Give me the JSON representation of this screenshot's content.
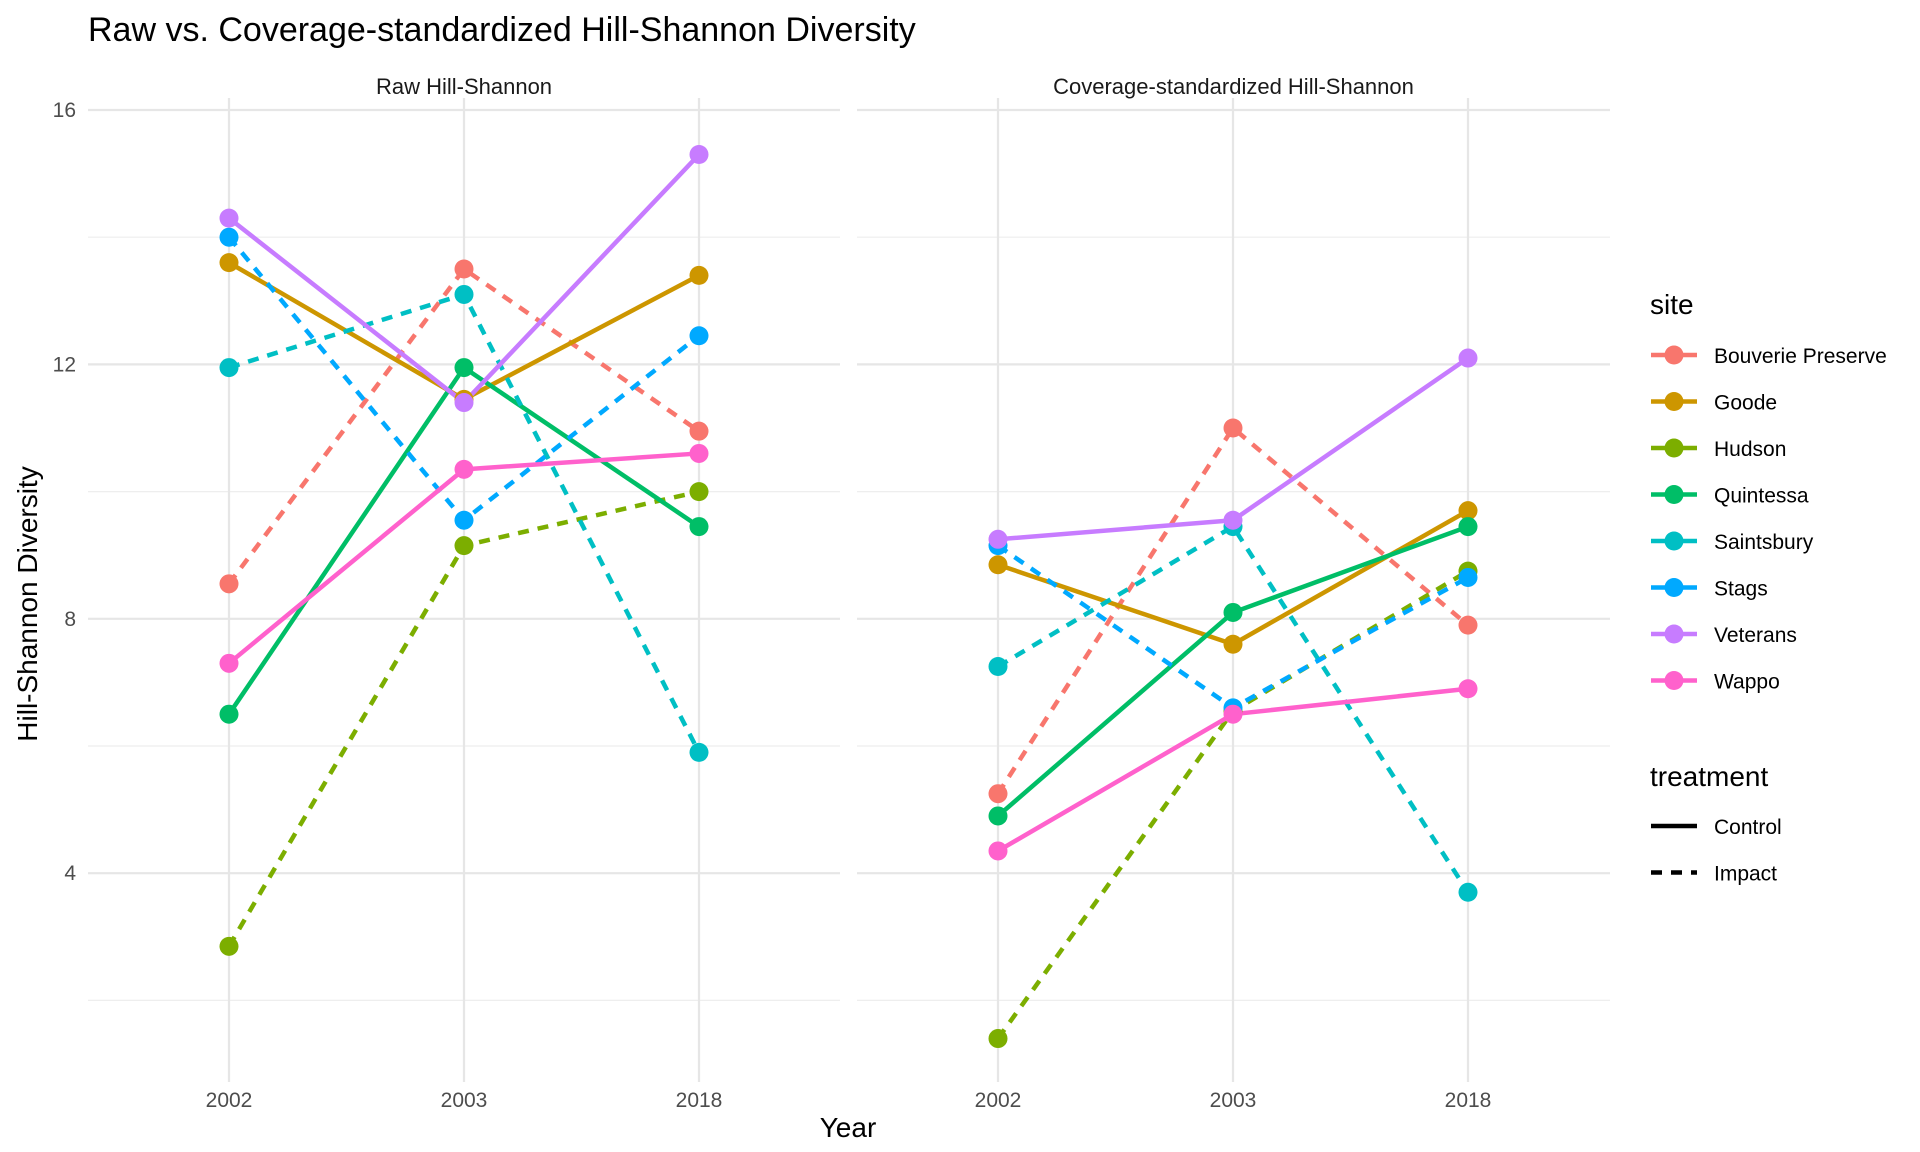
{
  "chart_data": {
    "type": "line",
    "title": "Raw vs. Coverage-standardized Hill-Shannon Diversity",
    "xlabel": "Year",
    "ylabel": "Hill-Shannon Diversity",
    "x": [
      "2002",
      "2003",
      "2018"
    ],
    "ylim": [
      1.6,
      16
    ],
    "yticks": [
      4,
      8,
      12,
      16
    ],
    "grid": true,
    "legend_position": "right",
    "legends": {
      "site": {
        "title": "site",
        "entries": [
          {
            "name": "Bouverie Preserve",
            "color": "#F8766D"
          },
          {
            "name": "Goode",
            "color": "#CD9600"
          },
          {
            "name": "Hudson",
            "color": "#7CAE00"
          },
          {
            "name": "Quintessa",
            "color": "#00BE67"
          },
          {
            "name": "Saintsbury",
            "color": "#00BFC4"
          },
          {
            "name": "Stags",
            "color": "#00A9FF"
          },
          {
            "name": "Veterans",
            "color": "#C77CFF"
          },
          {
            "name": "Wappo",
            "color": "#FF61CC"
          }
        ]
      },
      "treatment": {
        "title": "treatment",
        "entries": [
          {
            "name": "Control",
            "style": "solid"
          },
          {
            "name": "Impact",
            "style": "dashed"
          }
        ]
      }
    },
    "panels": [
      {
        "name": "Raw Hill-Shannon",
        "series": [
          {
            "site": "Bouverie Preserve",
            "treatment": "Impact",
            "values": [
              8.55,
              13.5,
              10.95
            ]
          },
          {
            "site": "Goode",
            "treatment": "Control",
            "values": [
              13.6,
              11.45,
              13.4
            ]
          },
          {
            "site": "Hudson",
            "treatment": "Impact",
            "values": [
              2.85,
              9.15,
              10.0
            ]
          },
          {
            "site": "Quintessa",
            "treatment": "Control",
            "values": [
              6.5,
              11.95,
              9.45
            ]
          },
          {
            "site": "Saintsbury",
            "treatment": "Impact",
            "values": [
              11.95,
              13.1,
              5.9
            ]
          },
          {
            "site": "Stags",
            "treatment": "Impact",
            "values": [
              14.0,
              9.55,
              12.45
            ]
          },
          {
            "site": "Veterans",
            "treatment": "Control",
            "values": [
              14.3,
              11.4,
              15.3
            ]
          },
          {
            "site": "Wappo",
            "treatment": "Control",
            "values": [
              7.3,
              10.35,
              10.6
            ]
          }
        ]
      },
      {
        "name": "Coverage-standardized Hill-Shannon",
        "series": [
          {
            "site": "Bouverie Preserve",
            "treatment": "Impact",
            "values": [
              5.25,
              11.0,
              7.9
            ]
          },
          {
            "site": "Goode",
            "treatment": "Control",
            "values": [
              8.85,
              7.6,
              9.7
            ]
          },
          {
            "site": "Hudson",
            "treatment": "Impact",
            "values": [
              1.4,
              6.55,
              8.75
            ]
          },
          {
            "site": "Quintessa",
            "treatment": "Control",
            "values": [
              4.9,
              8.1,
              9.45
            ]
          },
          {
            "site": "Saintsbury",
            "treatment": "Impact",
            "values": [
              7.25,
              9.45,
              3.7
            ]
          },
          {
            "site": "Stags",
            "treatment": "Impact",
            "values": [
              9.15,
              6.6,
              8.65
            ]
          },
          {
            "site": "Veterans",
            "treatment": "Control",
            "values": [
              9.25,
              9.55,
              12.1
            ]
          },
          {
            "site": "Wappo",
            "treatment": "Control",
            "values": [
              4.35,
              6.5,
              6.9
            ]
          }
        ]
      }
    ]
  }
}
